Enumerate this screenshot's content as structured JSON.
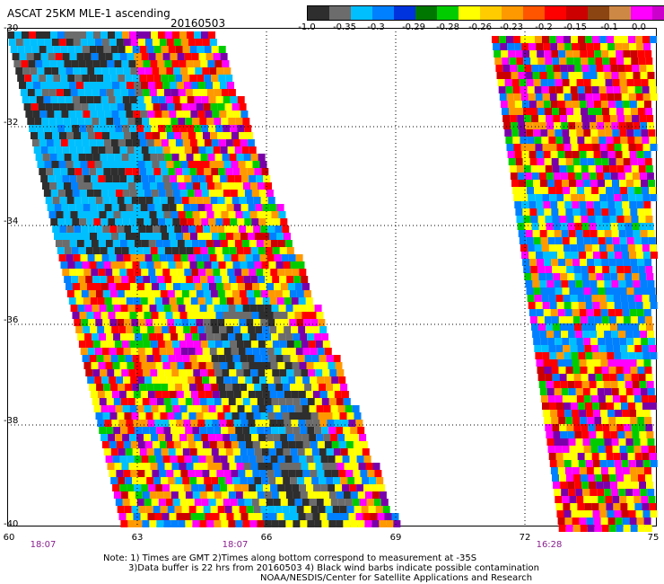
{
  "header": {
    "title": "ASCAT 25KM MLE-1 ascending",
    "date": "20160503"
  },
  "colorbar": {
    "colors": [
      "#2e2e2e",
      "#6c6c6c",
      "#00bfff",
      "#0080ff",
      "#0033dd",
      "#007700",
      "#00cc00",
      "#ffff00",
      "#ffcc00",
      "#ff9900",
      "#ff5500",
      "#ff0000",
      "#cc0000",
      "#8b4513",
      "#cc8844",
      "#ff00ff",
      "#cc00cc",
      "#7a00aa"
    ],
    "ticks": [
      "-1.0",
      "-0.35",
      "-0.3",
      "-0.29",
      "-0.28",
      "-0.26",
      "-0.23",
      "-0.2",
      "-0.15",
      "-0.1",
      "0.0"
    ]
  },
  "axes": {
    "lat_labels": [
      "-30",
      "-32",
      "-34",
      "-36",
      "-38",
      "-40"
    ],
    "lon_labels": [
      "60",
      "63",
      "66",
      "69",
      "72",
      "75"
    ],
    "time_labels": [
      "18:07",
      "18:07",
      "16:28"
    ]
  },
  "notes": {
    "line1": "Note: 1) Times are GMT 2)Times along bottom correspond to measurement at -35S",
    "line2": "3)Data buffer is 22 hrs from 20160503 4) Black wind barbs indicate possible contamination",
    "line3": "NOAA/NESDIS/Center for Satellite Applications and Research"
  }
}
